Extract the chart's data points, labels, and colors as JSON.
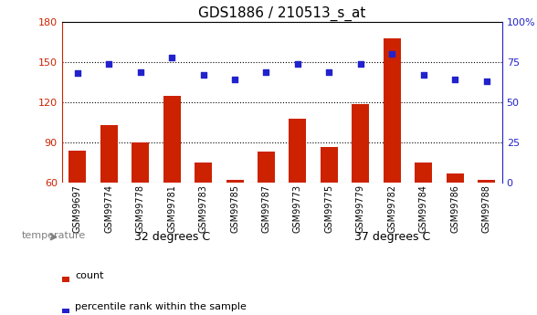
{
  "title": "GDS1886 / 210513_s_at",
  "samples": [
    "GSM99697",
    "GSM99774",
    "GSM99778",
    "GSM99781",
    "GSM99783",
    "GSM99785",
    "GSM99787",
    "GSM99773",
    "GSM99775",
    "GSM99779",
    "GSM99782",
    "GSM99784",
    "GSM99786",
    "GSM99788"
  ],
  "count_values": [
    84,
    103,
    90,
    125,
    75,
    62,
    83,
    108,
    87,
    119,
    168,
    75,
    67,
    62
  ],
  "percentile_values": [
    68,
    74,
    69,
    78,
    67,
    64,
    69,
    74,
    69,
    74,
    80,
    67,
    64,
    63
  ],
  "group1_label": "32 degrees C",
  "group2_label": "37 degrees C",
  "group1_count": 7,
  "group2_count": 7,
  "factor_label": "temperature",
  "ylim_left": [
    60,
    180
  ],
  "ylim_right": [
    0,
    100
  ],
  "yticks_left": [
    60,
    90,
    120,
    150,
    180
  ],
  "yticks_right": [
    0,
    25,
    50,
    75,
    100
  ],
  "bar_color": "#CC2200",
  "dot_color": "#2222CC",
  "group1_bg": "#CCFFCC",
  "group2_bg": "#55DD55",
  "xticklabel_bg": "#CCCCCC",
  "legend_count_label": "count",
  "legend_pct_label": "percentile rank within the sample",
  "title_fontsize": 11,
  "tick_fontsize": 8,
  "xtick_fontsize": 7
}
